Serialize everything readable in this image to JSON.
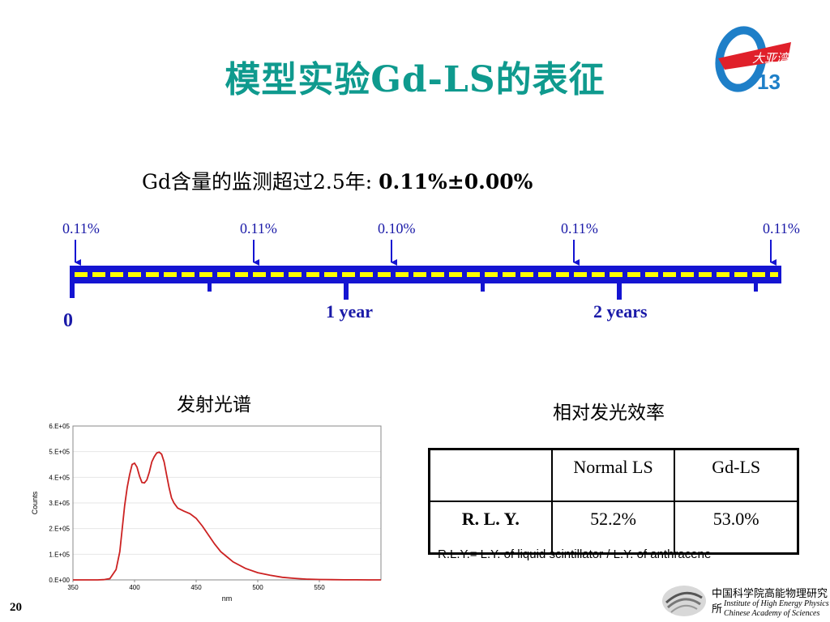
{
  "slide": {
    "title": "模型实验Gd-LS的表征",
    "subtitle_prefix": "Gd含量的监测超过2.5年:",
    "subtitle_value": "0.11%±0.00%",
    "page_number": "20"
  },
  "timeline": {
    "measurements": [
      "0.11%",
      "0.11%",
      "0.10%",
      "0.11%",
      "0.11%"
    ],
    "zero_label": "0",
    "year1_label": "1 year",
    "year2_label": "2 years",
    "bar_color": "#1414d2",
    "dash_color": "#ffff00"
  },
  "spectrum": {
    "heading": "发射光谱"
  },
  "efficiency": {
    "heading": "相对发光效率",
    "header": [
      "",
      "Normal LS",
      "Gd-LS"
    ],
    "row_label": "R. L. Y.",
    "values": [
      "52.2%",
      "53.0%"
    ],
    "note": "R.L.Y.= L.Y. of liquid scintillator / L.Y. of anthracene"
  },
  "logos": {
    "daya_bay_text": "大亚湾",
    "daya_bay_number": "13",
    "institute_cn": "中国科学院高能物理研究所",
    "institute_en_line1": "Institute of High Energy Physics",
    "institute_en_line2": "Chinese Academy of Sciences"
  },
  "chart_data": {
    "type": "line",
    "title": "",
    "xlabel": "nm",
    "ylabel": "Counts",
    "xlim": [
      350,
      600
    ],
    "ylim": [
      0,
      600000
    ],
    "x_ticks": [
      "350",
      "400",
      "450",
      "500",
      "550"
    ],
    "y_ticks": [
      "0.E+00",
      "1.E+05",
      "2.E+05",
      "3.E+05",
      "4.E+05",
      "5.E+05",
      "6.E+05"
    ],
    "line_color": "#cc2222",
    "x": [
      350,
      370,
      375,
      380,
      385,
      388,
      390,
      392,
      394,
      396,
      398,
      400,
      402,
      404,
      406,
      408,
      410,
      412,
      414,
      416,
      418,
      420,
      422,
      424,
      426,
      428,
      430,
      432,
      435,
      440,
      445,
      450,
      455,
      460,
      465,
      470,
      475,
      480,
      490,
      500,
      510,
      520,
      530,
      540,
      550,
      560,
      570,
      580,
      590,
      600
    ],
    "y": [
      0,
      0,
      1000,
      5000,
      40000,
      110000,
      200000,
      290000,
      360000,
      410000,
      450000,
      455000,
      440000,
      405000,
      380000,
      378000,
      390000,
      420000,
      460000,
      480000,
      495000,
      498000,
      490000,
      460000,
      410000,
      360000,
      320000,
      300000,
      280000,
      268000,
      258000,
      240000,
      210000,
      175000,
      140000,
      110000,
      90000,
      70000,
      45000,
      28000,
      18000,
      10000,
      6000,
      3000,
      1500,
      800,
      400,
      200,
      100,
      0
    ]
  }
}
